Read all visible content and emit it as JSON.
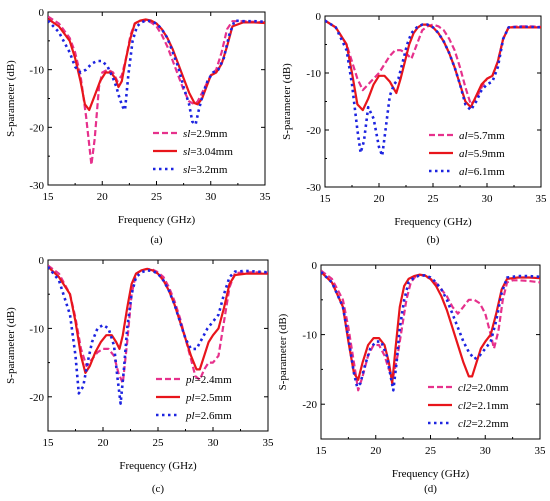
{
  "colors": {
    "dashed": "#e6318c",
    "solid": "#e8151b",
    "dotted": "#1d24e0"
  },
  "chart_data": [
    {
      "type": "line",
      "caption": "(a)",
      "xlabel": "Frequency (GHz)",
      "ylabel": "S-parameter (dB)",
      "xlim": [
        15,
        35
      ],
      "ylim": [
        -30,
        0
      ],
      "xticks": [
        "15",
        "20",
        "25",
        "30",
        "35"
      ],
      "yticks": [
        "0",
        "-10",
        "-20",
        "-30"
      ],
      "legend_position": "bottom-right",
      "series": [
        {
          "param": "sl",
          "value": "=2.9mm",
          "style": "dashed",
          "x": [
            15,
            16,
            17,
            17.5,
            18,
            18.5,
            18.8,
            19,
            19.3,
            19.7,
            20,
            20.5,
            21,
            21.4,
            21.8,
            22.2,
            22.6,
            23,
            23.5,
            24,
            24.5,
            25,
            25.5,
            26,
            26.5,
            27,
            27.5,
            28,
            28.5,
            28.8,
            29.2,
            29.6,
            30,
            30.5,
            31,
            31.5,
            32,
            33,
            34,
            35
          ],
          "y": [
            -0.8,
            -2,
            -4.5,
            -7,
            -11,
            -18,
            -23,
            -26.5,
            -22,
            -13,
            -10.5,
            -10,
            -10.5,
            -12,
            -11,
            -8,
            -4,
            -2,
            -1.5,
            -1.5,
            -1.8,
            -2.5,
            -4,
            -6,
            -8.5,
            -11,
            -13.5,
            -15.5,
            -16,
            -15.5,
            -14,
            -12.5,
            -11,
            -10,
            -7,
            -3,
            -1.6,
            -1.6,
            -1.7,
            -1.8
          ]
        },
        {
          "param": "sl",
          "value": "=3.04mm",
          "style": "solid",
          "x": [
            15,
            16,
            17,
            17.5,
            18,
            18.4,
            18.8,
            19.3,
            19.8,
            20.3,
            20.8,
            21.2,
            21.5,
            21.8,
            22.2,
            22.6,
            23,
            23.5,
            24,
            24.5,
            25,
            25.5,
            26,
            26.5,
            27,
            27.5,
            28,
            28.5,
            28.8,
            29.2,
            29.6,
            30,
            30.5,
            31,
            31.5,
            32,
            33,
            34,
            35
          ],
          "y": [
            -1.2,
            -2.5,
            -5,
            -8,
            -12,
            -16,
            -17,
            -14.5,
            -12,
            -10.5,
            -10.5,
            -11.5,
            -13,
            -12,
            -8,
            -4.5,
            -2,
            -1.5,
            -1.3,
            -1.5,
            -2,
            -3,
            -4.5,
            -6.5,
            -9,
            -11.5,
            -14,
            -15.8,
            -16,
            -15,
            -13,
            -11,
            -10.5,
            -9,
            -6,
            -2.5,
            -1.8,
            -1.8,
            -1.9
          ]
        },
        {
          "param": "sl",
          "value": "=3.2mm",
          "style": "dotted",
          "x": [
            15,
            16,
            17,
            17.5,
            18,
            18.5,
            19,
            19.5,
            20,
            20.5,
            21,
            21.3,
            21.6,
            21.9,
            22.1,
            22.4,
            22.8,
            23.2,
            23.6,
            24,
            24.5,
            25,
            25.5,
            26,
            26.5,
            27,
            27.5,
            28,
            28.3,
            28.6,
            28.9,
            29.3,
            29.7,
            30.2,
            30.7,
            31.2,
            31.7,
            32.2,
            33,
            34,
            35
          ],
          "y": [
            -1.5,
            -3.5,
            -7,
            -9.5,
            -10.5,
            -10,
            -9,
            -8.5,
            -8.5,
            -9.5,
            -11.5,
            -13,
            -15,
            -16.5,
            -17,
            -11,
            -5,
            -2.5,
            -1.8,
            -1.5,
            -1.6,
            -2,
            -3,
            -4.5,
            -7,
            -9.5,
            -13,
            -16,
            -19,
            -19.5,
            -17,
            -14,
            -12,
            -10.5,
            -10,
            -8,
            -4,
            -1.5,
            -1.6,
            -1.6,
            -1.7
          ]
        }
      ]
    },
    {
      "type": "line",
      "caption": "(b)",
      "xlabel": "Frequency (GHz)",
      "ylabel": "S-parameter (dB)",
      "xlim": [
        15,
        35
      ],
      "ylim": [
        -30,
        0
      ],
      "xticks": [
        "15",
        "20",
        "25",
        "30",
        "35"
      ],
      "yticks": [
        "0",
        "-10",
        "-20",
        "-30"
      ],
      "legend_position": "bottom-right",
      "series": [
        {
          "param": "al",
          "value": "=5.7mm",
          "style": "dashed",
          "x": [
            15,
            16,
            17,
            17.5,
            18,
            18.5,
            19,
            19.5,
            20,
            20.5,
            21,
            21.5,
            22,
            22.5,
            23,
            23.5,
            24,
            24.5,
            25,
            25.5,
            26,
            26.5,
            27,
            27.5,
            28,
            28.5,
            29,
            29.5,
            30,
            30.5,
            31,
            31.5,
            32,
            33,
            34,
            35
          ],
          "y": [
            -0.8,
            -2,
            -5,
            -8,
            -11,
            -13,
            -12,
            -11,
            -10,
            -8.5,
            -7,
            -6,
            -6,
            -6.5,
            -7.5,
            -5,
            -2.5,
            -1.8,
            -1.5,
            -1.8,
            -2.5,
            -4,
            -6,
            -9,
            -12.5,
            -15.5,
            -14.5,
            -12.5,
            -11,
            -10.5,
            -8,
            -4,
            -2,
            -1.8,
            -1.8,
            -1.9
          ]
        },
        {
          "param": "al",
          "value": "=5.9mm",
          "style": "solid",
          "x": [
            15,
            16,
            17,
            17.5,
            18,
            18.5,
            19,
            19.5,
            20,
            20.5,
            21,
            21.3,
            21.6,
            22,
            22.4,
            22.8,
            23.2,
            23.6,
            24,
            24.5,
            25,
            25.5,
            26,
            26.5,
            27,
            27.5,
            28,
            28.5,
            29,
            29.5,
            30,
            30.5,
            31,
            31.5,
            32,
            33,
            34,
            35
          ],
          "y": [
            -0.8,
            -2,
            -5,
            -10,
            -15.5,
            -16.5,
            -14.5,
            -12,
            -10.5,
            -10.5,
            -11.5,
            -12.5,
            -13.5,
            -11,
            -8,
            -5,
            -3,
            -2,
            -1.5,
            -1.5,
            -2,
            -3,
            -4.5,
            -6.5,
            -9,
            -12,
            -15,
            -16,
            -14,
            -12,
            -11,
            -10.5,
            -8,
            -4,
            -2,
            -2,
            -2,
            -2
          ]
        },
        {
          "param": "al",
          "value": "=6.1mm",
          "style": "dotted",
          "x": [
            15,
            16,
            17,
            17.5,
            18,
            18.3,
            18.6,
            19,
            19.5,
            20,
            20.3,
            20.6,
            21,
            21.4,
            21.8,
            22.2,
            22.6,
            23,
            23.5,
            24,
            24.5,
            25,
            25.5,
            26,
            26.5,
            27,
            27.5,
            28,
            28.5,
            29,
            29.5,
            30,
            30.5,
            31,
            31.5,
            32,
            33,
            34,
            35
          ],
          "y": [
            -0.8,
            -2,
            -6,
            -12,
            -20,
            -24,
            -22,
            -16,
            -18,
            -23,
            -24.5,
            -20,
            -14,
            -12,
            -11,
            -8,
            -5,
            -3,
            -2,
            -1.5,
            -1.5,
            -2,
            -3,
            -4.5,
            -6.5,
            -9,
            -12,
            -15.5,
            -16.5,
            -15,
            -13,
            -12,
            -11.5,
            -9,
            -4,
            -2,
            -1.9,
            -1.9,
            -2
          ]
        }
      ]
    },
    {
      "type": "line",
      "caption": "(c)",
      "xlabel": "Frequency (GHz)",
      "ylabel": "S-parameter (dB)",
      "xlim": [
        15,
        35
      ],
      "ylim": [
        -25,
        0
      ],
      "xticks": [
        "15",
        "20",
        "25",
        "30",
        "35"
      ],
      "yticks": [
        "0",
        "-10",
        "-20"
      ],
      "legend_position": "bottom-right",
      "series": [
        {
          "param": "pl",
          "value": "=2.4mm",
          "style": "dashed",
          "x": [
            15,
            16,
            17,
            17.5,
            18,
            18.5,
            19,
            19.5,
            20,
            20.5,
            21,
            21.4,
            21.8,
            22.2,
            22.6,
            23,
            23.5,
            24,
            24.5,
            25,
            25.5,
            26,
            26.5,
            27,
            27.5,
            28,
            28.4,
            28.8,
            29.2,
            29.6,
            30,
            30.5,
            31,
            31.5,
            32,
            33,
            34,
            35
          ],
          "y": [
            -0.8,
            -2,
            -5,
            -8.5,
            -13,
            -15.5,
            -14.5,
            -13.5,
            -13,
            -13,
            -14,
            -16.5,
            -18,
            -12,
            -5,
            -2,
            -1.5,
            -1.3,
            -1.4,
            -1.8,
            -2.5,
            -4,
            -6,
            -8.5,
            -11.5,
            -14.5,
            -17,
            -17.5,
            -16,
            -15,
            -15,
            -14,
            -9,
            -4,
            -1.9,
            -1.8,
            -1.8,
            -1.9
          ]
        },
        {
          "param": "pl",
          "value": "=2.5mm",
          "style": "solid",
          "x": [
            15,
            16,
            17,
            17.5,
            18,
            18.4,
            18.8,
            19.3,
            19.8,
            20.3,
            20.8,
            21.2,
            21.5,
            21.8,
            22.2,
            22.6,
            23,
            23.5,
            24,
            24.5,
            25,
            25.5,
            26,
            26.5,
            27,
            27.5,
            28,
            28.5,
            28.8,
            29.2,
            29.6,
            30,
            30.5,
            31,
            31.5,
            32,
            33,
            34,
            35
          ],
          "y": [
            -1,
            -2.5,
            -5,
            -9,
            -14,
            -16.5,
            -15.5,
            -13.5,
            -12,
            -11,
            -11,
            -12,
            -13,
            -11,
            -7,
            -3.5,
            -2,
            -1.5,
            -1.3,
            -1.5,
            -2,
            -3,
            -4.5,
            -6.5,
            -9,
            -11.5,
            -14,
            -16,
            -16,
            -14,
            -12,
            -11,
            -10,
            -7,
            -3.5,
            -2.2,
            -2,
            -2,
            -2
          ]
        },
        {
          "param": "pl",
          "value": "=2.6mm",
          "style": "dotted",
          "x": [
            15,
            16,
            17,
            17.5,
            17.8,
            18.2,
            18.6,
            19,
            19.5,
            20,
            20.5,
            21,
            21.3,
            21.6,
            21.9,
            22.2,
            22.6,
            23,
            23.5,
            24,
            24.5,
            25,
            25.5,
            26,
            26.5,
            27,
            27.5,
            28,
            28.5,
            29,
            29.5,
            30,
            30.5,
            31,
            31.5,
            32,
            33,
            34,
            35
          ],
          "y": [
            -1,
            -3,
            -8,
            -14,
            -19.5,
            -18.5,
            -15,
            -12,
            -10,
            -9.5,
            -10,
            -12.5,
            -17,
            -21,
            -16,
            -10,
            -5,
            -2.5,
            -1.8,
            -1.5,
            -1.6,
            -2,
            -3,
            -4.5,
            -6.5,
            -9,
            -11.5,
            -13,
            -13,
            -11.5,
            -10,
            -9,
            -8,
            -5,
            -2.5,
            -1.7,
            -1.6,
            -1.7,
            -1.8
          ]
        }
      ]
    },
    {
      "type": "line",
      "caption": "(d)",
      "xlabel": "Frequency (GHz)",
      "ylabel": "S-parameter (dB)",
      "xlim": [
        15,
        35
      ],
      "ylim": [
        -25,
        0
      ],
      "xticks": [
        "15",
        "20",
        "25",
        "30",
        "35"
      ],
      "yticks": [
        "0",
        "-10",
        "-20"
      ],
      "legend_position": "bottom-right",
      "series": [
        {
          "param": "cl2",
          "value": "=2.0mm",
          "style": "dashed",
          "x": [
            15,
            16,
            17,
            17.5,
            18,
            18.4,
            18.8,
            19.3,
            19.8,
            20.3,
            20.8,
            21.2,
            21.6,
            22,
            22.4,
            22.8,
            23.2,
            23.6,
            24,
            24.5,
            25,
            25.5,
            26,
            26.5,
            27,
            27.5,
            28,
            28.5,
            29,
            29.5,
            30,
            30.5,
            30.8,
            31.2,
            31.6,
            32,
            32.5,
            33,
            34,
            35
          ],
          "y": [
            -0.8,
            -2,
            -5,
            -9,
            -14,
            -18,
            -16,
            -13,
            -11.5,
            -11.5,
            -13,
            -15,
            -16,
            -13,
            -9,
            -5,
            -2.5,
            -1.7,
            -1.4,
            -1.6,
            -2,
            -2.6,
            -3.5,
            -4.5,
            -6,
            -7,
            -6,
            -5,
            -5,
            -5.5,
            -7,
            -10,
            -12,
            -9.5,
            -5,
            -2.5,
            -2.2,
            -2.2,
            -2.3,
            -2.5
          ]
        },
        {
          "param": "cl2",
          "value": "=2.1mm",
          "style": "solid",
          "x": [
            15,
            16,
            17,
            17.5,
            18,
            18.4,
            18.8,
            19.3,
            19.8,
            20.3,
            20.8,
            21.2,
            21.5,
            21.8,
            22.2,
            22.6,
            23,
            23.5,
            24,
            24.5,
            25,
            25.5,
            26,
            26.5,
            27,
            27.5,
            28,
            28.5,
            28.8,
            29.2,
            29.6,
            30,
            30.5,
            31,
            31.5,
            32,
            33,
            34,
            35
          ],
          "y": [
            -1,
            -2.5,
            -6,
            -11,
            -15.5,
            -16.5,
            -14,
            -11.5,
            -10.5,
            -10.5,
            -11.5,
            -14,
            -17,
            -12,
            -6,
            -3,
            -2,
            -1.6,
            -1.4,
            -1.5,
            -2,
            -3,
            -4.5,
            -6.5,
            -9,
            -11.5,
            -14,
            -16,
            -16,
            -14,
            -12,
            -11,
            -10,
            -7,
            -3.5,
            -2,
            -1.8,
            -1.8,
            -1.9
          ]
        },
        {
          "param": "cl2",
          "value": "=2.2mm",
          "style": "dotted",
          "x": [
            15,
            16,
            17,
            17.5,
            18,
            18.3,
            18.6,
            19,
            19.5,
            20,
            20.5,
            21,
            21.3,
            21.6,
            21.9,
            22.2,
            22.6,
            23,
            23.5,
            24,
            24.5,
            25,
            25.5,
            26,
            26.5,
            27,
            27.5,
            28,
            28.5,
            29,
            29.5,
            30,
            30.5,
            31,
            31.5,
            32,
            33,
            34,
            35
          ],
          "y": [
            -1,
            -2.5,
            -6,
            -10.5,
            -15.5,
            -17.5,
            -17,
            -14.5,
            -12,
            -11,
            -11,
            -13,
            -15.5,
            -18,
            -14,
            -9,
            -5,
            -2.5,
            -1.8,
            -1.5,
            -1.5,
            -1.8,
            -2.5,
            -3.5,
            -5,
            -7,
            -9,
            -11,
            -12.5,
            -13.5,
            -13,
            -12,
            -11,
            -8,
            -4,
            -1.8,
            -1.6,
            -1.6,
            -1.7
          ]
        }
      ]
    }
  ]
}
